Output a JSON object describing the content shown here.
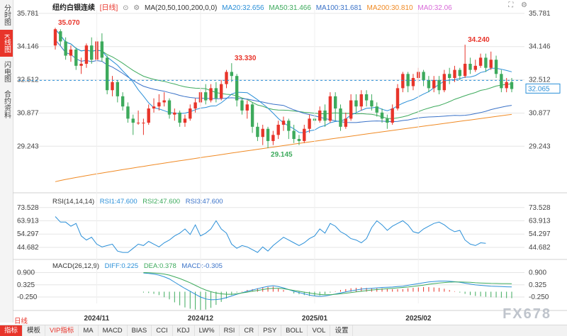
{
  "sidebar": {
    "tabs": [
      {
        "label": "分时图",
        "active": false
      },
      {
        "label": "K线图",
        "active": true
      },
      {
        "label": "闪电图",
        "active": false
      },
      {
        "label": "合约资料",
        "active": false
      }
    ]
  },
  "header": {
    "title": "纽约白银连续",
    "period": "[日线]",
    "ma_label": "MA(20,50,100,200,0,0)",
    "ma_values": [
      {
        "label": "MA20:32.656",
        "color": "#2a8fd8"
      },
      {
        "label": "MA50:31.466",
        "color": "#3daa5c"
      },
      {
        "label": "MA100:31.681",
        "color": "#3a72c8"
      },
      {
        "label": "MA200:30.810",
        "color": "#f08a24"
      },
      {
        "label": "MA0:32.06",
        "color": "#d86ad8"
      }
    ],
    "icons": [
      "fullscreen-icon",
      "settings-icon"
    ]
  },
  "rsi_legend": {
    "label": "RSI(14,14,14)",
    "values": [
      {
        "label": "RSI1:47.600",
        "color": "#2a8fd8"
      },
      {
        "label": "RSI2:47.600",
        "color": "#3daa5c"
      },
      {
        "label": "RSI3:47.600",
        "color": "#3a72c8"
      }
    ]
  },
  "macd_legend": {
    "label": "MACD(26,12,9)",
    "values": [
      {
        "label": "DIFF:0.225",
        "color": "#2a8fd8"
      },
      {
        "label": "DEA:0.378",
        "color": "#3daa5c"
      },
      {
        "label": "MACD:-0.305",
        "color": "#3a72c8"
      }
    ]
  },
  "period_button": "日线",
  "bottom_tabs": [
    {
      "label": "指标",
      "active": true
    },
    {
      "label": "模板",
      "active": false
    },
    {
      "label": "VIP指标",
      "active": false,
      "red": true
    },
    {
      "label": "MA",
      "active": false
    },
    {
      "label": "MACD",
      "active": false
    },
    {
      "label": "BIAS",
      "active": false
    },
    {
      "label": "CCI",
      "active": false
    },
    {
      "label": "KDJ",
      "active": false
    },
    {
      "label": "LW%",
      "active": false
    },
    {
      "label": "RSI",
      "active": false
    },
    {
      "label": "CR",
      "active": false
    },
    {
      "label": "PSY",
      "active": false
    },
    {
      "label": "BOLL",
      "active": false
    },
    {
      "label": "VOL",
      "active": false
    },
    {
      "label": "设置",
      "active": false
    }
  ],
  "watermark": "FX678",
  "colors": {
    "up": "#e8342a",
    "down": "#3daa5c",
    "ma20": "#2a8fd8",
    "ma50": "#3daa5c",
    "ma100": "#3a72c8",
    "ma200": "#f08a24",
    "grid": "#e6e6e6",
    "current_price": "#2a8fd8"
  },
  "chart_data": {
    "type": "candlestick",
    "price_axis": {
      "ticks": [
        "35.781",
        "34.146",
        "32.512",
        "30.877",
        "29.243"
      ],
      "tick_values": [
        35.781,
        34.146,
        32.512,
        30.877,
        29.243
      ],
      "ylim": [
        27.3,
        35.95
      ]
    },
    "current_price": "32.065",
    "annotations": [
      {
        "label": "35.070",
        "value": 35.07,
        "index": 0
      },
      {
        "label": "33.330",
        "value": 33.33,
        "index": 34
      },
      {
        "label": "29.145",
        "value": 29.145,
        "index": 41
      },
      {
        "label": "34.240",
        "value": 34.24,
        "index": 79
      }
    ],
    "x_labels": [
      "2024/11",
      "2024/12",
      "2025/01",
      "2025/02"
    ],
    "x_label_index": [
      8,
      28,
      50,
      70
    ],
    "candles": [
      [
        34.2,
        35.0,
        35.07,
        34.0
      ],
      [
        34.9,
        34.4,
        35.0,
        34.2
      ],
      [
        34.4,
        33.7,
        34.6,
        33.5
      ],
      [
        33.7,
        34.0,
        34.2,
        33.4
      ],
      [
        34.0,
        33.2,
        34.1,
        33.0
      ],
      [
        33.2,
        33.3,
        33.6,
        32.8
      ],
      [
        33.3,
        34.2,
        34.3,
        33.1
      ],
      [
        34.2,
        33.5,
        34.6,
        33.3
      ],
      [
        33.5,
        34.4,
        34.6,
        33.3
      ],
      [
        34.4,
        33.6,
        34.8,
        33.4
      ],
      [
        33.6,
        32.0,
        33.7,
        31.8
      ],
      [
        32.0,
        32.4,
        32.7,
        31.7
      ],
      [
        32.4,
        31.7,
        32.5,
        31.4
      ],
      [
        31.7,
        31.2,
        31.9,
        31.0
      ],
      [
        31.2,
        30.6,
        31.4,
        30.4
      ],
      [
        30.6,
        30.4,
        30.8,
        29.8
      ],
      [
        30.4,
        30.4,
        31.0,
        30.3
      ],
      [
        30.4,
        30.4,
        30.6,
        29.8
      ],
      [
        30.4,
        31.1,
        31.3,
        30.3
      ],
      [
        31.1,
        31.2,
        31.6,
        30.9
      ],
      [
        31.2,
        31.4,
        31.8,
        31.0
      ],
      [
        31.4,
        31.5,
        31.9,
        31.2
      ],
      [
        31.5,
        30.8,
        31.6,
        30.6
      ],
      [
        30.8,
        30.9,
        31.1,
        30.5
      ],
      [
        30.9,
        30.4,
        31.0,
        30.2
      ],
      [
        30.4,
        30.6,
        30.8,
        30.2
      ],
      [
        30.6,
        31.1,
        31.3,
        30.5
      ],
      [
        31.1,
        31.4,
        31.6,
        30.9
      ],
      [
        31.4,
        31.9,
        32.1,
        31.2
      ],
      [
        31.9,
        31.5,
        32.3,
        31.3
      ],
      [
        31.5,
        32.1,
        32.3,
        31.4
      ],
      [
        32.1,
        31.6,
        32.4,
        31.4
      ],
      [
        31.6,
        32.3,
        32.5,
        31.5
      ],
      [
        32.3,
        32.9,
        33.0,
        32.1
      ],
      [
        32.9,
        32.7,
        33.33,
        32.4
      ],
      [
        32.7,
        31.5,
        32.8,
        31.2
      ],
      [
        31.5,
        31.0,
        31.6,
        30.8
      ],
      [
        31.0,
        31.3,
        31.5,
        30.6
      ],
      [
        31.3,
        30.2,
        31.4,
        29.9
      ],
      [
        30.2,
        29.7,
        30.4,
        29.5
      ],
      [
        29.7,
        30.1,
        30.3,
        29.3
      ],
      [
        30.1,
        29.5,
        30.2,
        29.145
      ],
      [
        29.5,
        29.8,
        30.0,
        29.3
      ],
      [
        29.8,
        30.3,
        30.5,
        29.6
      ],
      [
        30.3,
        30.5,
        30.7,
        30.0
      ],
      [
        30.5,
        30.0,
        30.6,
        29.6
      ],
      [
        30.0,
        29.6,
        30.3,
        29.4
      ],
      [
        29.6,
        29.5,
        29.8,
        29.3
      ],
      [
        29.5,
        30.1,
        30.3,
        29.4
      ],
      [
        30.1,
        30.6,
        30.8,
        29.9
      ],
      [
        30.6,
        30.5,
        30.9,
        30.3
      ],
      [
        30.5,
        31.0,
        31.2,
        30.4
      ],
      [
        31.0,
        30.5,
        31.3,
        30.2
      ],
      [
        30.5,
        31.7,
        31.9,
        30.4
      ],
      [
        31.7,
        31.1,
        31.9,
        30.5
      ],
      [
        31.1,
        30.2,
        31.3,
        30.0
      ],
      [
        30.2,
        30.6,
        30.9,
        30.1
      ],
      [
        30.6,
        31.5,
        31.8,
        30.5
      ],
      [
        31.5,
        31.2,
        31.8,
        30.9
      ],
      [
        31.2,
        31.8,
        32.0,
        31.0
      ],
      [
        31.8,
        31.5,
        32.0,
        31.2
      ],
      [
        31.5,
        31.2,
        31.8,
        31.0
      ],
      [
        31.2,
        30.9,
        31.4,
        30.7
      ],
      [
        30.9,
        30.6,
        31.1,
        30.4
      ],
      [
        30.6,
        30.4,
        30.8,
        30.1
      ],
      [
        30.4,
        31.1,
        31.3,
        30.3
      ],
      [
        31.1,
        32.1,
        32.3,
        31.0
      ],
      [
        32.1,
        32.8,
        32.9,
        31.9
      ],
      [
        32.8,
        32.2,
        32.9,
        31.9
      ],
      [
        32.2,
        32.6,
        32.8,
        32.0
      ],
      [
        32.6,
        32.9,
        33.1,
        32.4
      ],
      [
        32.9,
        32.5,
        33.0,
        32.2
      ],
      [
        32.5,
        32.1,
        32.7,
        31.9
      ],
      [
        32.1,
        32.5,
        32.7,
        31.9
      ],
      [
        32.5,
        32.0,
        32.7,
        31.8
      ],
      [
        32.0,
        32.8,
        33.0,
        31.9
      ],
      [
        32.8,
        32.6,
        33.1,
        32.3
      ],
      [
        32.6,
        33.0,
        33.2,
        32.4
      ],
      [
        33.0,
        32.7,
        33.1,
        32.5
      ],
      [
        32.7,
        33.3,
        34.24,
        32.6
      ],
      [
        33.3,
        33.0,
        33.6,
        32.8
      ],
      [
        33.0,
        33.2,
        33.5,
        32.9
      ],
      [
        33.2,
        33.6,
        33.8,
        33.1
      ],
      [
        33.6,
        33.1,
        33.8,
        32.9
      ],
      [
        33.1,
        33.5,
        33.9,
        33.0
      ],
      [
        33.5,
        32.8,
        33.7,
        32.6
      ],
      [
        32.8,
        32.1,
        33.0,
        31.9
      ],
      [
        32.1,
        32.4,
        32.6,
        31.9
      ],
      [
        32.4,
        32.06,
        32.6,
        31.9
      ]
    ],
    "ma200_range": [
      27.5,
      30.81
    ],
    "rsi": {
      "ticks": [
        "73.528",
        "63.913",
        "54.297",
        "44.682"
      ],
      "tick_values": [
        73.528,
        63.913,
        54.297,
        44.682
      ],
      "ylim": [
        39.0,
        76.0
      ],
      "values": [
        67,
        63,
        63,
        60,
        62,
        53,
        50,
        52,
        47,
        45,
        46,
        47,
        42,
        41,
        41,
        44,
        47,
        46,
        49,
        47,
        45,
        48,
        50,
        53,
        55,
        58,
        54,
        61,
        53,
        55,
        58,
        64,
        58,
        55,
        47,
        44,
        46,
        45,
        43,
        41,
        45,
        42,
        46,
        49,
        52,
        50,
        48,
        46,
        48,
        51,
        53,
        58,
        55,
        62,
        60,
        56,
        54,
        51,
        50,
        48,
        51,
        59,
        64,
        61,
        57,
        60,
        62,
        64,
        61,
        56,
        55,
        58,
        60,
        62,
        63,
        61,
        58,
        56,
        57,
        50,
        47,
        46,
        48,
        47.6
      ]
    },
    "macd": {
      "ticks": [
        "0.900",
        "0.325",
        "-0.250"
      ],
      "tick_values": [
        0.9,
        0.325,
        -0.25
      ],
      "ylim": [
        -0.55,
        1.05
      ],
      "diff": [
        0.88,
        0.86,
        0.83,
        0.78,
        0.7,
        0.6,
        0.45,
        0.3,
        0.15,
        0.02,
        -0.12,
        -0.25,
        -0.34,
        -0.38,
        -0.37,
        -0.34,
        -0.28,
        -0.2,
        -0.12,
        -0.05,
        0.02,
        0.08,
        0.14,
        0.2,
        0.25,
        0.28,
        0.24,
        0.18,
        0.1,
        0.02,
        -0.04,
        -0.1,
        -0.16,
        -0.2,
        -0.22,
        -0.2,
        -0.16,
        -0.11,
        -0.06,
        -0.01,
        0.04,
        0.08,
        0.12,
        0.14,
        0.16,
        0.18,
        0.2,
        0.21,
        0.22,
        0.24,
        0.26,
        0.3,
        0.34,
        0.38,
        0.42,
        0.46,
        0.48,
        0.5,
        0.5,
        0.49,
        0.47,
        0.44,
        0.4,
        0.36,
        0.32,
        0.3,
        0.28,
        0.26,
        0.25,
        0.24,
        0.23,
        0.225
      ],
      "dea": [
        0.9,
        0.89,
        0.88,
        0.86,
        0.83,
        0.78,
        0.7,
        0.62,
        0.52,
        0.42,
        0.3,
        0.18,
        0.08,
        0.0,
        -0.06,
        -0.1,
        -0.12,
        -0.12,
        -0.1,
        -0.06,
        -0.02,
        0.02,
        0.06,
        0.1,
        0.14,
        0.16,
        0.16,
        0.14,
        0.1,
        0.06,
        0.02,
        -0.02,
        -0.06,
        -0.1,
        -0.13,
        -0.14,
        -0.14,
        -0.12,
        -0.1,
        -0.07,
        -0.04,
        -0.01,
        0.02,
        0.05,
        0.08,
        0.1,
        0.12,
        0.14,
        0.16,
        0.18,
        0.2,
        0.22,
        0.25,
        0.28,
        0.31,
        0.35,
        0.38,
        0.41,
        0.43,
        0.45,
        0.46,
        0.46,
        0.45,
        0.44,
        0.42,
        0.41,
        0.4,
        0.39,
        0.385,
        0.38,
        0.38,
        0.378
      ],
      "hist": [
        -0.04,
        -0.06,
        -0.1,
        -0.16,
        -0.26,
        -0.36,
        -0.5,
        -0.64,
        -0.74,
        -0.8,
        -0.84,
        -0.86,
        -0.84,
        -0.76,
        -0.62,
        -0.48,
        -0.32,
        -0.16,
        -0.04,
        0.02,
        0.08,
        0.12,
        0.16,
        0.2,
        0.22,
        0.24,
        0.16,
        0.08,
        0.0,
        -0.08,
        -0.12,
        -0.16,
        -0.2,
        -0.2,
        -0.18,
        -0.12,
        -0.04,
        0.02,
        0.08,
        0.12,
        0.16,
        0.18,
        0.2,
        0.18,
        0.16,
        0.16,
        0.16,
        0.14,
        0.12,
        0.12,
        0.12,
        0.16,
        0.18,
        0.2,
        0.22,
        0.22,
        0.2,
        0.18,
        0.14,
        0.08,
        0.02,
        -0.04,
        -0.1,
        -0.16,
        -0.2,
        -0.22,
        -0.24,
        -0.26,
        -0.27,
        -0.28,
        -0.3,
        -0.305
      ]
    }
  }
}
